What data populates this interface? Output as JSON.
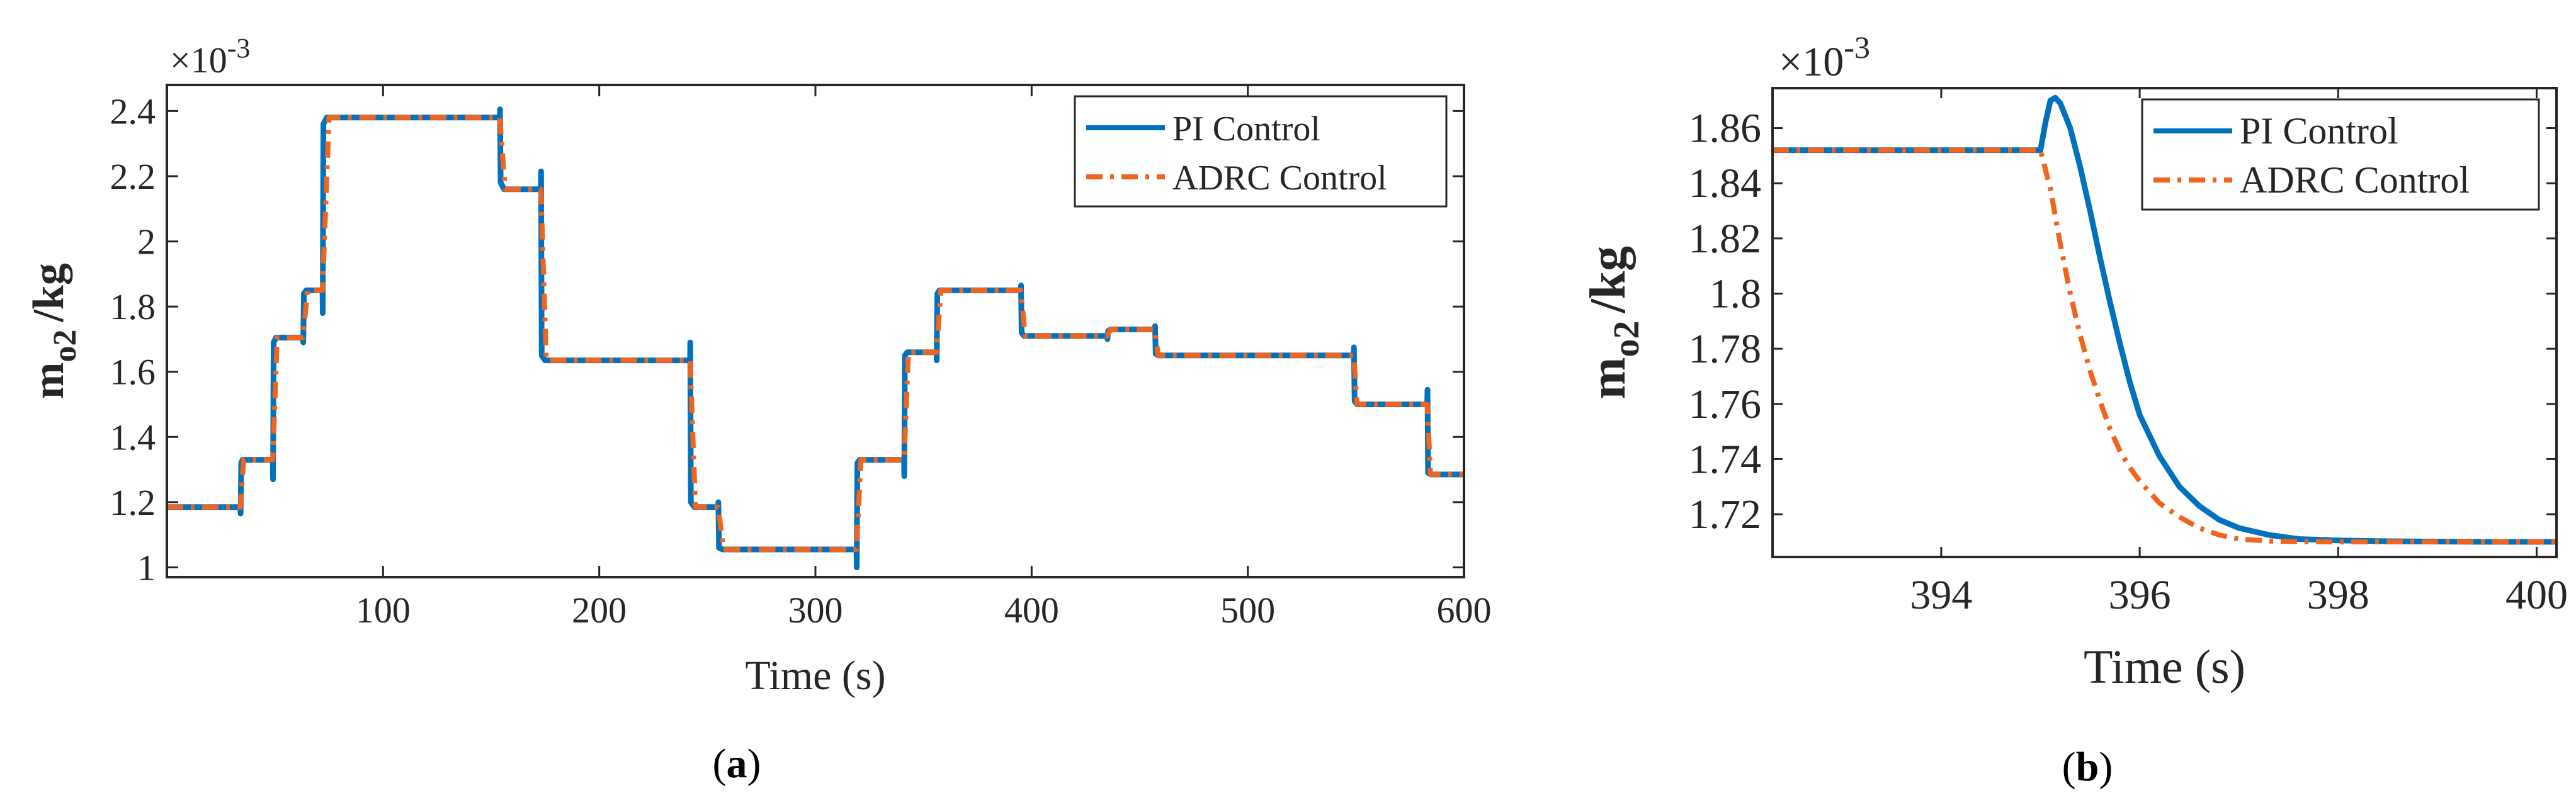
{
  "chart_data": [
    {
      "type": "line",
      "id": "a",
      "caption_letter": "a",
      "xlabel": "Time (s)",
      "ylabel_main": "m",
      "ylabel_sub": "o2",
      "ylabel_unit": "/kg",
      "exponent_label": "×10",
      "exponent_power": "-3",
      "xlim": [
        0,
        600
      ],
      "ylim": [
        0.97,
        2.48
      ],
      "xticks": [
        100,
        200,
        300,
        400,
        500,
        600
      ],
      "xtick_labels": [
        "100",
        "200",
        "300",
        "400",
        "500",
        "600"
      ],
      "yticks": [
        1.0,
        1.2,
        1.4,
        1.6,
        1.8,
        2.0,
        2.2,
        2.4
      ],
      "ytick_labels": [
        "1",
        "1.2",
        "1.4",
        "1.6",
        "1.8",
        "2",
        "2.2",
        "2.4"
      ],
      "legend_position": "top-right",
      "series": [
        {
          "name": "PI Control",
          "color": "#0072BD",
          "style": "solid",
          "x": [
            0,
            34,
            34.1,
            34.4,
            35,
            49,
            49.1,
            49.4,
            50.5,
            63,
            63.1,
            63.4,
            64.5,
            72,
            72.1,
            72.4,
            74,
            154,
            154.1,
            154.4,
            156,
            173,
            173.1,
            173.4,
            175,
            242,
            242.1,
            242.4,
            244,
            255,
            255.1,
            255.4,
            257,
            319,
            319.1,
            319.4,
            320.5,
            341,
            341.1,
            341.4,
            342.5,
            356,
            356.1,
            356.4,
            357.5,
            395,
            395.1,
            395.4,
            396.5,
            435,
            435.1,
            435.4,
            436.5,
            457,
            457.1,
            457.4,
            458.5,
            549,
            549.1,
            549.4,
            550.5,
            583,
            583.1,
            583.4,
            584.5,
            600
          ],
          "y": [
            1.185,
            1.185,
            1.165,
            1.32,
            1.33,
            1.33,
            1.27,
            1.69,
            1.705,
            1.705,
            1.69,
            1.84,
            1.85,
            1.85,
            1.78,
            2.36,
            2.38,
            2.38,
            2.405,
            2.18,
            2.16,
            2.16,
            2.215,
            1.65,
            1.635,
            1.635,
            1.69,
            1.2,
            1.185,
            1.185,
            1.2,
            1.06,
            1.055,
            1.055,
            1.0,
            1.32,
            1.33,
            1.33,
            1.28,
            1.65,
            1.66,
            1.66,
            1.635,
            1.84,
            1.85,
            1.85,
            1.865,
            1.72,
            1.71,
            1.71,
            1.7,
            1.725,
            1.73,
            1.73,
            1.74,
            1.655,
            1.65,
            1.65,
            1.675,
            1.51,
            1.5,
            1.5,
            1.545,
            1.29,
            1.285,
            1.285
          ]
        },
        {
          "name": "ADRC Control",
          "color": "#F0641E",
          "style": "dashdot",
          "x": [
            0,
            34,
            35.5,
            49,
            51,
            63,
            65,
            72,
            75,
            154,
            156.5,
            173,
            175.5,
            242,
            244.5,
            255,
            257.5,
            319,
            321,
            341,
            343,
            356,
            358,
            395,
            397,
            435,
            436.5,
            457,
            458.5,
            549,
            550.5,
            583,
            584.5,
            600
          ],
          "y": [
            1.185,
            1.185,
            1.33,
            1.33,
            1.705,
            1.705,
            1.85,
            1.85,
            2.38,
            2.38,
            2.16,
            2.16,
            1.635,
            1.635,
            1.185,
            1.185,
            1.055,
            1.055,
            1.33,
            1.33,
            1.66,
            1.66,
            1.85,
            1.85,
            1.71,
            1.71,
            1.73,
            1.73,
            1.65,
            1.65,
            1.5,
            1.5,
            1.285,
            1.285
          ]
        }
      ]
    },
    {
      "type": "line",
      "id": "b",
      "caption_letter": "b",
      "xlabel": "Time (s)",
      "ylabel_main": "m",
      "ylabel_sub": "o2",
      "ylabel_unit": "/kg",
      "exponent_label": "×10",
      "exponent_power": "-3",
      "xlim": [
        392.3,
        400.2
      ],
      "ylim": [
        1.7045,
        1.8745
      ],
      "xticks": [
        394,
        396,
        398,
        400
      ],
      "xtick_labels": [
        "394",
        "396",
        "398",
        "400"
      ],
      "yticks": [
        1.72,
        1.74,
        1.76,
        1.78,
        1.8,
        1.82,
        1.84,
        1.86
      ],
      "ytick_labels": [
        "1.72",
        "1.74",
        "1.76",
        "1.78",
        "1.8",
        "1.82",
        "1.84",
        "1.86"
      ],
      "legend_position": "top-right",
      "series": [
        {
          "name": "PI Control",
          "color": "#0072BD",
          "style": "solid",
          "x": [
            392.3,
            395.0,
            395.05,
            395.1,
            395.15,
            395.2,
            395.3,
            395.4,
            395.5,
            395.6,
            395.7,
            395.8,
            395.9,
            396.0,
            396.2,
            396.4,
            396.6,
            396.8,
            397.0,
            397.3,
            397.6,
            398.0,
            398.5,
            399.0,
            399.5,
            400.2
          ],
          "y": [
            1.852,
            1.852,
            1.862,
            1.87,
            1.871,
            1.869,
            1.86,
            1.846,
            1.83,
            1.813,
            1.797,
            1.782,
            1.768,
            1.756,
            1.741,
            1.73,
            1.723,
            1.718,
            1.715,
            1.7125,
            1.711,
            1.7105,
            1.7102,
            1.7101,
            1.71,
            1.71
          ]
        },
        {
          "name": "ADRC Control",
          "color": "#F0641E",
          "style": "dashdot",
          "x": [
            392.3,
            395.0,
            395.1,
            395.2,
            395.3,
            395.4,
            395.5,
            395.6,
            395.7,
            395.8,
            395.9,
            396.0,
            396.2,
            396.4,
            396.6,
            396.8,
            397.0,
            397.3,
            397.6,
            398.0,
            398.5,
            399.0,
            400.2
          ],
          "y": [
            1.852,
            1.852,
            1.838,
            1.818,
            1.8,
            1.785,
            1.772,
            1.761,
            1.751,
            1.743,
            1.737,
            1.732,
            1.724,
            1.719,
            1.715,
            1.7125,
            1.711,
            1.7103,
            1.7101,
            1.71,
            1.71,
            1.71,
            1.71
          ]
        }
      ]
    }
  ]
}
